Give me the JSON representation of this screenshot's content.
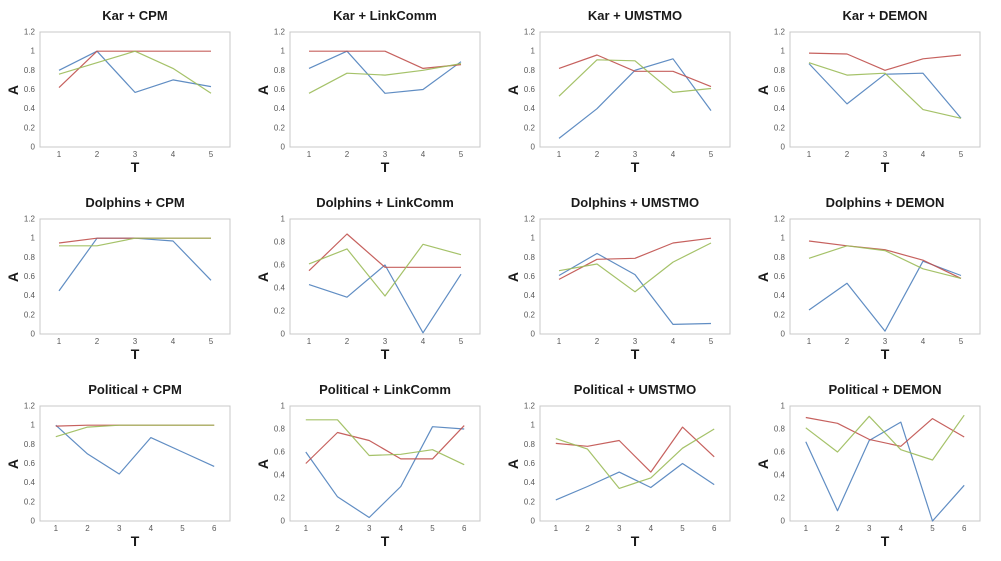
{
  "figure": {
    "ylabel": "A",
    "xlabel": "T"
  },
  "colors": {
    "blue": "#4F81BD",
    "red": "#C0504D",
    "green": "#9BBB59",
    "plot_border": "#C8C8C8",
    "tick_text": "#595959"
  },
  "chart_data": [
    {
      "type": "line",
      "title": "Kar + CPM",
      "xlabel": "T",
      "ylabel": "A",
      "categories": [
        "1",
        "2",
        "3",
        "4",
        "5"
      ],
      "ylim": [
        0,
        1.2
      ],
      "yticks": [
        "0",
        "0.2",
        "0.4",
        "0.6",
        "0.8",
        "1",
        "1.2"
      ],
      "grid": false,
      "legend": "none",
      "series": [
        {
          "name": "blue",
          "color": "blue",
          "values": [
            0.8,
            1.0,
            0.57,
            0.7,
            0.63
          ]
        },
        {
          "name": "red",
          "color": "red",
          "values": [
            0.62,
            1.0,
            1.0,
            1.0,
            1.0
          ]
        },
        {
          "name": "green",
          "color": "green",
          "values": [
            0.76,
            0.88,
            1.0,
            0.82,
            0.56
          ]
        }
      ]
    },
    {
      "type": "line",
      "title": "Kar + LinkComm",
      "xlabel": "T",
      "ylabel": "A",
      "categories": [
        "1",
        "2",
        "3",
        "4",
        "5"
      ],
      "ylim": [
        0,
        1.2
      ],
      "yticks": [
        "0",
        "0.2",
        "0.4",
        "0.6",
        "0.8",
        "1",
        "1.2"
      ],
      "grid": false,
      "legend": "none",
      "series": [
        {
          "name": "blue",
          "color": "blue",
          "values": [
            0.82,
            1.0,
            0.56,
            0.6,
            0.89
          ]
        },
        {
          "name": "red",
          "color": "red",
          "values": [
            1.0,
            1.0,
            1.0,
            0.82,
            0.86
          ]
        },
        {
          "name": "green",
          "color": "green",
          "values": [
            0.56,
            0.77,
            0.75,
            0.8,
            0.87
          ]
        }
      ]
    },
    {
      "type": "line",
      "title": "Kar + UMSTMO",
      "xlabel": "T",
      "ylabel": "A",
      "categories": [
        "1",
        "2",
        "3",
        "4",
        "5"
      ],
      "ylim": [
        0,
        1.2
      ],
      "yticks": [
        "0",
        "0.2",
        "0.4",
        "0.6",
        "0.8",
        "1",
        "1.2"
      ],
      "grid": false,
      "legend": "none",
      "series": [
        {
          "name": "blue",
          "color": "blue",
          "values": [
            0.09,
            0.4,
            0.8,
            0.92,
            0.38
          ]
        },
        {
          "name": "red",
          "color": "red",
          "values": [
            0.82,
            0.96,
            0.79,
            0.79,
            0.63
          ]
        },
        {
          "name": "green",
          "color": "green",
          "values": [
            0.53,
            0.91,
            0.9,
            0.57,
            0.61
          ]
        }
      ]
    },
    {
      "type": "line",
      "title": "Kar + DEMON",
      "xlabel": "T",
      "ylabel": "A",
      "categories": [
        "1",
        "2",
        "3",
        "4",
        "5"
      ],
      "ylim": [
        0,
        1.2
      ],
      "yticks": [
        "0",
        "0.2",
        "0.4",
        "0.6",
        "0.8",
        "1",
        "1.2"
      ],
      "grid": false,
      "legend": "none",
      "series": [
        {
          "name": "blue",
          "color": "blue",
          "values": [
            0.87,
            0.45,
            0.76,
            0.77,
            0.3
          ]
        },
        {
          "name": "red",
          "color": "red",
          "values": [
            0.98,
            0.97,
            0.8,
            0.92,
            0.96
          ]
        },
        {
          "name": "green",
          "color": "green",
          "values": [
            0.88,
            0.75,
            0.77,
            0.39,
            0.3
          ]
        }
      ]
    },
    {
      "type": "line",
      "title": "Dolphins + CPM",
      "xlabel": "T",
      "ylabel": "A",
      "categories": [
        "1",
        "2",
        "3",
        "4",
        "5"
      ],
      "ylim": [
        0,
        1.2
      ],
      "yticks": [
        "0",
        "0.2",
        "0.4",
        "0.6",
        "0.8",
        "1",
        "1.2"
      ],
      "grid": false,
      "legend": "none",
      "series": [
        {
          "name": "blue",
          "color": "blue",
          "values": [
            0.45,
            1.0,
            1.0,
            0.97,
            0.56
          ]
        },
        {
          "name": "red",
          "color": "red",
          "values": [
            0.95,
            1.0,
            1.0,
            1.0,
            1.0
          ]
        },
        {
          "name": "green",
          "color": "green",
          "values": [
            0.92,
            0.92,
            1.0,
            1.0,
            1.0
          ]
        }
      ]
    },
    {
      "type": "line",
      "title": "Dolphins + LinkComm",
      "xlabel": "T",
      "ylabel": "A",
      "categories": [
        "1",
        "2",
        "3",
        "4",
        "5"
      ],
      "ylim": [
        0,
        1.0
      ],
      "yticks": [
        "0",
        "0.2",
        "0.4",
        "0.6",
        "0.8",
        "1"
      ],
      "grid": false,
      "legend": "none",
      "series": [
        {
          "name": "blue",
          "color": "blue",
          "values": [
            0.43,
            0.32,
            0.6,
            0.01,
            0.52
          ]
        },
        {
          "name": "red",
          "color": "red",
          "values": [
            0.55,
            0.87,
            0.58,
            0.58,
            0.58
          ]
        },
        {
          "name": "green",
          "color": "green",
          "values": [
            0.61,
            0.74,
            0.33,
            0.78,
            0.69
          ]
        }
      ]
    },
    {
      "type": "line",
      "title": "Dolphins + UMSTMO",
      "xlabel": "T",
      "ylabel": "A",
      "categories": [
        "1",
        "2",
        "3",
        "4",
        "5"
      ],
      "ylim": [
        0,
        1.2
      ],
      "yticks": [
        "0",
        "0.2",
        "0.4",
        "0.6",
        "0.8",
        "1",
        "1.2"
      ],
      "grid": false,
      "legend": "none",
      "series": [
        {
          "name": "blue",
          "color": "blue",
          "values": [
            0.61,
            0.84,
            0.62,
            0.1,
            0.11
          ]
        },
        {
          "name": "red",
          "color": "red",
          "values": [
            0.57,
            0.78,
            0.79,
            0.95,
            1.0
          ]
        },
        {
          "name": "green",
          "color": "green",
          "values": [
            0.66,
            0.73,
            0.44,
            0.75,
            0.95
          ]
        }
      ]
    },
    {
      "type": "line",
      "title": "Dolphins + DEMON",
      "xlabel": "T",
      "ylabel": "A",
      "categories": [
        "1",
        "2",
        "3",
        "4",
        "5"
      ],
      "ylim": [
        0,
        1.2
      ],
      "yticks": [
        "0",
        "0.2",
        "0.4",
        "0.6",
        "0.8",
        "1",
        "1.2"
      ],
      "grid": false,
      "legend": "none",
      "series": [
        {
          "name": "blue",
          "color": "blue",
          "values": [
            0.25,
            0.53,
            0.03,
            0.76,
            0.61
          ]
        },
        {
          "name": "red",
          "color": "red",
          "values": [
            0.97,
            0.92,
            0.88,
            0.77,
            0.58
          ]
        },
        {
          "name": "green",
          "color": "green",
          "values": [
            0.79,
            0.92,
            0.87,
            0.68,
            0.58
          ]
        }
      ]
    },
    {
      "type": "line",
      "title": "Political + CPM",
      "xlabel": "T",
      "ylabel": "A",
      "categories": [
        "1",
        "2",
        "3",
        "4",
        "5",
        "6"
      ],
      "ylim": [
        0,
        1.2
      ],
      "yticks": [
        "0",
        "0.2",
        "0.4",
        "0.6",
        "0.8",
        "1",
        "1.2"
      ],
      "grid": false,
      "legend": "none",
      "series": [
        {
          "name": "blue",
          "color": "blue",
          "values": [
            1.0,
            0.7,
            0.49,
            0.87,
            0.72,
            0.57
          ]
        },
        {
          "name": "red",
          "color": "red",
          "values": [
            0.99,
            1.0,
            1.0,
            1.0,
            1.0,
            1.0
          ]
        },
        {
          "name": "green",
          "color": "green",
          "values": [
            0.88,
            0.98,
            1.0,
            1.0,
            1.0,
            1.0
          ]
        }
      ]
    },
    {
      "type": "line",
      "title": "Political + LinkComm",
      "xlabel": "T",
      "ylabel": "A",
      "categories": [
        "1",
        "2",
        "3",
        "4",
        "5",
        "6"
      ],
      "ylim": [
        0,
        1.0
      ],
      "yticks": [
        "0",
        "0.2",
        "0.4",
        "0.6",
        "0.8",
        "1"
      ],
      "grid": false,
      "legend": "none",
      "series": [
        {
          "name": "blue",
          "color": "blue",
          "values": [
            0.6,
            0.21,
            0.03,
            0.3,
            0.82,
            0.8
          ]
        },
        {
          "name": "red",
          "color": "red",
          "values": [
            0.5,
            0.77,
            0.7,
            0.54,
            0.54,
            0.83
          ]
        },
        {
          "name": "green",
          "color": "green",
          "values": [
            0.88,
            0.88,
            0.57,
            0.58,
            0.62,
            0.49
          ]
        }
      ]
    },
    {
      "type": "line",
      "title": "Political + UMSTMO",
      "xlabel": "T",
      "ylabel": "A",
      "categories": [
        "1",
        "2",
        "3",
        "4",
        "5",
        "6"
      ],
      "ylim": [
        0,
        1.2
      ],
      "yticks": [
        "0",
        "0.2",
        "0.4",
        "0.6",
        "0.8",
        "1",
        "1.2"
      ],
      "grid": false,
      "legend": "none",
      "series": [
        {
          "name": "blue",
          "color": "blue",
          "values": [
            0.22,
            0.36,
            0.51,
            0.35,
            0.6,
            0.38
          ]
        },
        {
          "name": "red",
          "color": "red",
          "values": [
            0.81,
            0.78,
            0.84,
            0.51,
            0.98,
            0.67
          ]
        },
        {
          "name": "green",
          "color": "green",
          "values": [
            0.86,
            0.75,
            0.34,
            0.45,
            0.76,
            0.96
          ]
        }
      ]
    },
    {
      "type": "line",
      "title": "Political + DEMON",
      "xlabel": "T",
      "ylabel": "A",
      "categories": [
        "1",
        "2",
        "3",
        "4",
        "5",
        "6"
      ],
      "ylim": [
        0,
        1.0
      ],
      "yticks": [
        "0",
        "0.2",
        "0.4",
        "0.6",
        "0.8",
        "1"
      ],
      "grid": false,
      "legend": "none",
      "series": [
        {
          "name": "blue",
          "color": "blue",
          "values": [
            0.69,
            0.09,
            0.7,
            0.86,
            0.0,
            0.31
          ]
        },
        {
          "name": "red",
          "color": "red",
          "values": [
            0.9,
            0.85,
            0.71,
            0.65,
            0.89,
            0.73
          ]
        },
        {
          "name": "green",
          "color": "green",
          "values": [
            0.81,
            0.6,
            0.91,
            0.62,
            0.53,
            0.92
          ]
        }
      ]
    }
  ]
}
